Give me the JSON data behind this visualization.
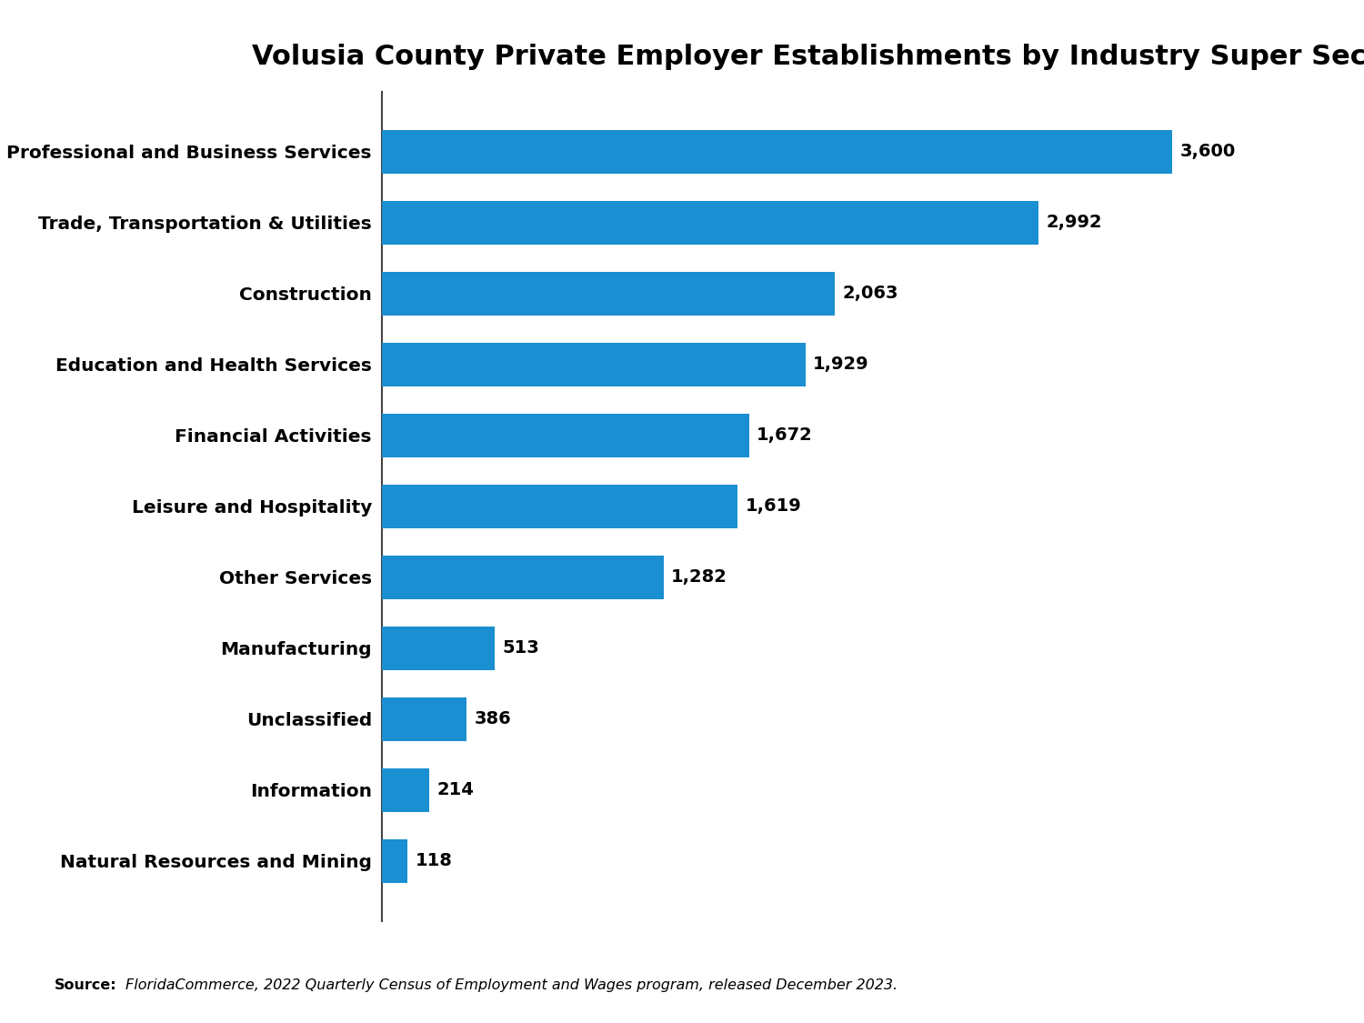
{
  "title": "Volusia County Private Employer Establishments by Industry Super Sector",
  "categories": [
    "Professional and Business Services",
    "Trade, Transportation & Utilities",
    "Construction",
    "Education and Health Services",
    "Financial Activities",
    "Leisure and Hospitality",
    "Other Services",
    "Manufacturing",
    "Unclassified",
    "Information",
    "Natural Resources and Mining"
  ],
  "values": [
    3600,
    2992,
    2063,
    1929,
    1672,
    1619,
    1282,
    513,
    386,
    214,
    118
  ],
  "bar_color": "#1A8FD1",
  "background_color": "#FFFFFF",
  "title_fontsize": 22,
  "label_fontsize": 14.5,
  "value_fontsize": 14,
  "source_bold": "Source:",
  "source_italic": "FloridaCommerce, 2022 Quarterly Census of Employment and Wages program, released December 2023.",
  "xlim": [
    0,
    4100
  ]
}
